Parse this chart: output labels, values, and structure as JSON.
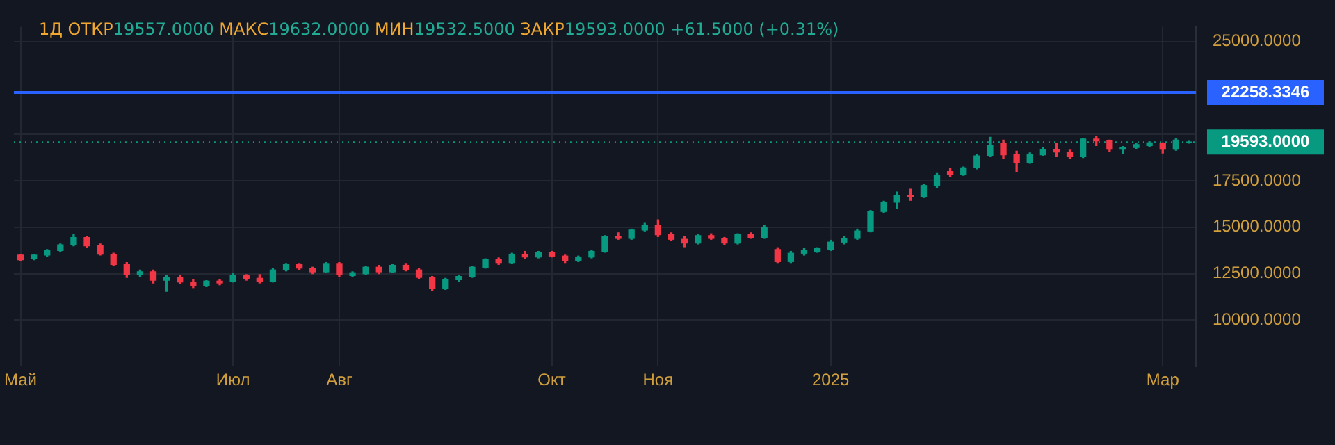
{
  "chart_data": {
    "type": "candlestick",
    "title": "1Д ОТКР19557.0000 МАКС19632.0000 МИН19532.5000 ЗАКР19593.0000 +61.5000 (+0.31%)",
    "categories": [
      "Май",
      null,
      null,
      null,
      null,
      null,
      null,
      null,
      null,
      null,
      null,
      null,
      null,
      null,
      null,
      null,
      "Июл",
      null,
      null,
      null,
      null,
      null,
      null,
      null,
      "Авг",
      null,
      null,
      null,
      null,
      null,
      null,
      null,
      null,
      null,
      null,
      null,
      null,
      null,
      null,
      null,
      "Окт",
      null,
      null,
      null,
      null,
      null,
      null,
      null,
      "Ноя",
      null,
      null,
      null,
      null,
      null,
      null,
      null,
      null,
      null,
      null,
      null,
      null,
      "2025",
      null,
      null,
      null,
      null,
      null,
      null,
      null,
      null,
      null,
      null,
      null,
      null,
      null,
      null,
      null,
      null,
      null,
      null,
      null,
      null,
      null,
      null,
      null,
      null,
      "Мар",
      null,
      null
    ],
    "ohlc": [
      [
        13500,
        13550,
        13200,
        13250
      ],
      [
        13300,
        13550,
        13250,
        13500
      ],
      [
        13500,
        13800,
        13450,
        13750
      ],
      [
        13750,
        14100,
        13700,
        14050
      ],
      [
        14050,
        14600,
        14000,
        14450
      ],
      [
        14450,
        14500,
        13900,
        14000
      ],
      [
        14000,
        14100,
        13500,
        13550
      ],
      [
        13550,
        13600,
        12950,
        13000
      ],
      [
        13000,
        13100,
        12300,
        12450
      ],
      [
        12450,
        12700,
        12350,
        12600
      ],
      [
        12600,
        12700,
        12000,
        12150
      ],
      [
        12150,
        12400,
        11550,
        12300
      ],
      [
        12300,
        12400,
        11950,
        12050
      ],
      [
        12050,
        12200,
        11750,
        11850
      ],
      [
        11850,
        12150,
        11800,
        12100
      ],
      [
        12100,
        12200,
        11900,
        12000
      ],
      [
        12100,
        12500,
        12050,
        12400
      ],
      [
        12400,
        12450,
        12150,
        12250
      ],
      [
        12250,
        12450,
        12000,
        12100
      ],
      [
        12100,
        12800,
        12050,
        12700
      ],
      [
        12700,
        13050,
        12650,
        13000
      ],
      [
        13000,
        13050,
        12700,
        12800
      ],
      [
        12800,
        12850,
        12500,
        12600
      ],
      [
        12600,
        13100,
        12550,
        13050
      ],
      [
        13050,
        13100,
        12350,
        12450
      ],
      [
        12400,
        12600,
        12350,
        12550
      ],
      [
        12500,
        12900,
        12450,
        12850
      ],
      [
        12850,
        12950,
        12500,
        12600
      ],
      [
        12600,
        13000,
        12550,
        12950
      ],
      [
        12950,
        13050,
        12650,
        12700
      ],
      [
        12700,
        12800,
        12250,
        12300
      ],
      [
        12300,
        12350,
        11600,
        11700
      ],
      [
        11700,
        12250,
        11650,
        12200
      ],
      [
        12200,
        12400,
        12100,
        12350
      ],
      [
        12350,
        12900,
        12300,
        12850
      ],
      [
        12850,
        13300,
        12800,
        13250
      ],
      [
        13250,
        13350,
        13000,
        13100
      ],
      [
        13100,
        13600,
        13050,
        13550
      ],
      [
        13550,
        13700,
        13300,
        13400
      ],
      [
        13400,
        13700,
        13350,
        13650
      ],
      [
        13650,
        13700,
        13400,
        13450
      ],
      [
        13450,
        13500,
        13100,
        13200
      ],
      [
        13200,
        13450,
        13150,
        13400
      ],
      [
        13400,
        13750,
        13350,
        13700
      ],
      [
        13700,
        14550,
        13650,
        14500
      ],
      [
        14500,
        14700,
        14350,
        14400
      ],
      [
        14400,
        14900,
        14350,
        14850
      ],
      [
        14850,
        15250,
        14800,
        15100
      ],
      [
        15100,
        15400,
        14500,
        14600
      ],
      [
        14600,
        14700,
        14300,
        14350
      ],
      [
        14350,
        14500,
        13950,
        14150
      ],
      [
        14150,
        14600,
        14100,
        14550
      ],
      [
        14550,
        14650,
        14350,
        14400
      ],
      [
        14400,
        14450,
        14050,
        14150
      ],
      [
        14150,
        14650,
        14100,
        14600
      ],
      [
        14600,
        14700,
        14400,
        14450
      ],
      [
        14450,
        15100,
        14400,
        15000
      ],
      [
        13800,
        13900,
        13100,
        13150
      ],
      [
        13150,
        13700,
        13100,
        13600
      ],
      [
        13600,
        13850,
        13500,
        13750
      ],
      [
        13700,
        13900,
        13650,
        13850
      ],
      [
        13800,
        14300,
        13750,
        14200
      ],
      [
        14200,
        14500,
        14100,
        14400
      ],
      [
        14400,
        14900,
        14350,
        14800
      ],
      [
        14800,
        15900,
        14750,
        15850
      ],
      [
        15850,
        16400,
        15800,
        16350
      ],
      [
        16350,
        16900,
        16000,
        16700
      ],
      [
        16700,
        17050,
        16450,
        16650
      ],
      [
        16650,
        17300,
        16600,
        17250
      ],
      [
        17250,
        17900,
        17150,
        17800
      ],
      [
        18000,
        18150,
        17750,
        17850
      ],
      [
        17850,
        18250,
        17800,
        18200
      ],
      [
        18200,
        18900,
        18150,
        18850
      ],
      [
        18850,
        19850,
        18800,
        19400
      ],
      [
        19500,
        19700,
        18700,
        18900
      ],
      [
        18900,
        19100,
        18000,
        18500
      ],
      [
        18500,
        19000,
        18450,
        18900
      ],
      [
        18900,
        19300,
        18850,
        19200
      ],
      [
        19200,
        19500,
        18800,
        19050
      ],
      [
        19050,
        19150,
        18700,
        18800
      ],
      [
        18800,
        19800,
        18750,
        19750
      ],
      [
        19750,
        19900,
        19400,
        19650
      ],
      [
        19650,
        19700,
        19100,
        19200
      ],
      [
        19200,
        19350,
        18950,
        19300
      ],
      [
        19300,
        19500,
        19250,
        19450
      ],
      [
        19400,
        19600,
        19350,
        19550
      ],
      [
        19500,
        19550,
        19000,
        19200
      ],
      [
        19200,
        19800,
        19150,
        19700
      ],
      [
        19557,
        19632,
        19532.5,
        19593
      ]
    ],
    "colors": [
      "#f23645",
      "#089981",
      "#089981",
      "#089981",
      "#089981",
      "#f23645",
      "#f23645",
      "#f23645",
      "#f23645",
      "#089981",
      "#f23645",
      "#089981",
      "#f23645",
      "#f23645",
      "#089981",
      "#f23645",
      "#089981",
      "#f23645",
      "#f23645",
      "#089981",
      "#089981",
      "#f23645",
      "#f23645",
      "#089981",
      "#f23645",
      "#089981",
      "#089981",
      "#f23645",
      "#089981",
      "#f23645",
      "#f23645",
      "#f23645",
      "#089981",
      "#089981",
      "#089981",
      "#089981",
      "#f23645",
      "#089981",
      "#f23645",
      "#089981",
      "#f23645",
      "#f23645",
      "#089981",
      "#089981",
      "#089981",
      "#f23645",
      "#089981",
      "#089981",
      "#f23645",
      "#f23645",
      "#f23645",
      "#089981",
      "#f23645",
      "#f23645",
      "#089981",
      "#f23645",
      "#089981",
      "#f23645",
      "#089981",
      "#089981",
      "#089981",
      "#089981",
      "#089981",
      "#089981",
      "#089981",
      "#089981",
      "#089981",
      "#f23645",
      "#089981",
      "#089981",
      "#f23645",
      "#089981",
      "#089981",
      "#089981",
      "#f23645",
      "#f23645",
      "#089981",
      "#089981",
      "#f23645",
      "#f23645",
      "#089981",
      "#f23645",
      "#f23645",
      "#089981",
      "#089981",
      "#089981",
      "#f23645",
      "#089981",
      "#089981"
    ],
    "ylim": [
      7500,
      25800
    ],
    "yticks": [
      {
        "value": 10000,
        "label": "10000.0000"
      },
      {
        "value": 12500,
        "label": "12500.0000"
      },
      {
        "value": 15000,
        "label": "15000.0000"
      },
      {
        "value": 17500,
        "label": "17500.0000"
      },
      {
        "value": 20000,
        "label": null
      },
      {
        "value": 25000,
        "label": "25000.0000"
      }
    ],
    "ref_lines": [
      {
        "axis": "y",
        "value": 22258.3346,
        "label": "22258.3346",
        "color": "#2962ff",
        "line_style": "solid"
      },
      {
        "axis": "y",
        "value": 19593,
        "label": "19593.0000",
        "color": "#089981",
        "line_style": "dotted"
      }
    ],
    "grid": true
  }
}
